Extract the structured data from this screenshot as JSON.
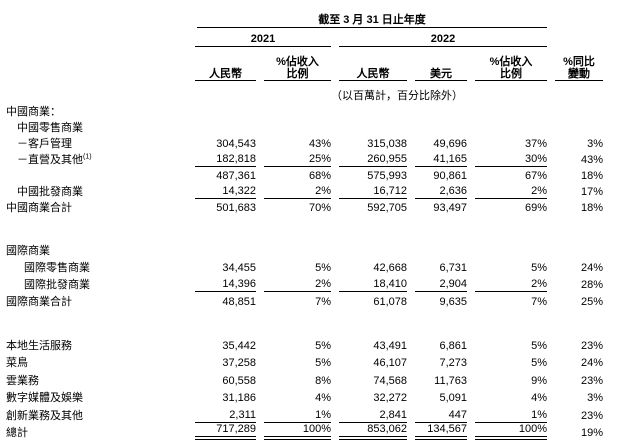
{
  "page": {
    "background": "#ffffff",
    "text_color": "#000000"
  },
  "table": {
    "title": "截至 3 月 31 日止年度",
    "year_groups": [
      "2021",
      "2022"
    ],
    "column_headers": [
      {
        "lines": [
          "人民幣"
        ]
      },
      {
        "lines": [
          "%佔收入",
          "比例"
        ]
      },
      {
        "lines": [
          "人民幣"
        ]
      },
      {
        "lines": [
          "美元"
        ]
      },
      {
        "lines": [
          "%佔收入",
          "比例"
        ]
      },
      {
        "lines": [
          "%同比",
          "變動"
        ]
      }
    ],
    "unit_note": "（以百萬計，百分比除外）",
    "sections": [
      {
        "name": "china-commerce",
        "rows": [
          {
            "label": "中國商業：",
            "indent": 0,
            "values": [
              "",
              "",
              "",
              "",
              "",
              ""
            ]
          },
          {
            "label": "中國零售商業",
            "indent": 1,
            "values": [
              "",
              "",
              "",
              "",
              "",
              ""
            ]
          },
          {
            "label": "－客戶管理",
            "indent": 1,
            "values": [
              "304,543",
              "43%",
              "315,038",
              "49,696",
              "37%",
              "3%"
            ]
          },
          {
            "label": "－直營及其他",
            "sup": "(1)",
            "indent": 1,
            "underline": "single",
            "values": [
              "182,818",
              "25%",
              "260,955",
              "41,165",
              "30%",
              "43%"
            ]
          },
          {
            "label": "",
            "indent": 0,
            "values": [
              "487,361",
              "68%",
              "575,993",
              "90,861",
              "67%",
              "18%"
            ]
          },
          {
            "label": "中國批發商業",
            "indent": 1,
            "underline": "single",
            "values": [
              "14,322",
              "2%",
              "16,712",
              "2,636",
              "2%",
              "17%"
            ]
          },
          {
            "label": "中國商業合計",
            "indent": 0,
            "values": [
              "501,683",
              "70%",
              "592,705",
              "93,497",
              "69%",
              "18%"
            ]
          }
        ]
      },
      {
        "name": "international-commerce",
        "rows": [
          {
            "label": "國際商業",
            "indent": 0,
            "values": [
              "",
              "",
              "",
              "",
              "",
              ""
            ]
          },
          {
            "label": "國際零售商業",
            "indent": 2,
            "values": [
              "34,455",
              "5%",
              "42,668",
              "6,731",
              "5%",
              "24%"
            ]
          },
          {
            "label": "國際批發商業",
            "indent": 2,
            "underline": "single",
            "values": [
              "14,396",
              "2%",
              "18,410",
              "2,904",
              "2%",
              "28%"
            ]
          },
          {
            "label": "國際商業合計",
            "indent": 0,
            "values": [
              "48,851",
              "7%",
              "61,078",
              "9,635",
              "7%",
              "25%"
            ]
          }
        ]
      },
      {
        "name": "other-segments",
        "rows": [
          {
            "label": "本地生活服務",
            "indent": 0,
            "values": [
              "35,442",
              "5%",
              "43,491",
              "6,861",
              "5%",
              "23%"
            ]
          },
          {
            "label": "菜鳥",
            "indent": 0,
            "values": [
              "37,258",
              "5%",
              "46,107",
              "7,273",
              "5%",
              "24%"
            ]
          },
          {
            "label": "雲業務",
            "indent": 0,
            "values": [
              "60,558",
              "8%",
              "74,568",
              "11,763",
              "9%",
              "23%"
            ]
          },
          {
            "label": "數字媒體及娛樂",
            "indent": 0,
            "values": [
              "31,186",
              "4%",
              "32,272",
              "5,091",
              "4%",
              "3%"
            ]
          },
          {
            "label": "創新業務及其他",
            "indent": 0,
            "underline": "single",
            "values": [
              "2,311",
              "1%",
              "2,841",
              "447",
              "1%",
              "23%"
            ]
          },
          {
            "label": "總計",
            "indent": 0,
            "underline": "double",
            "values": [
              "717,289",
              "100%",
              "853,062",
              "134,567",
              "100%",
              "19%"
            ]
          }
        ]
      }
    ]
  }
}
